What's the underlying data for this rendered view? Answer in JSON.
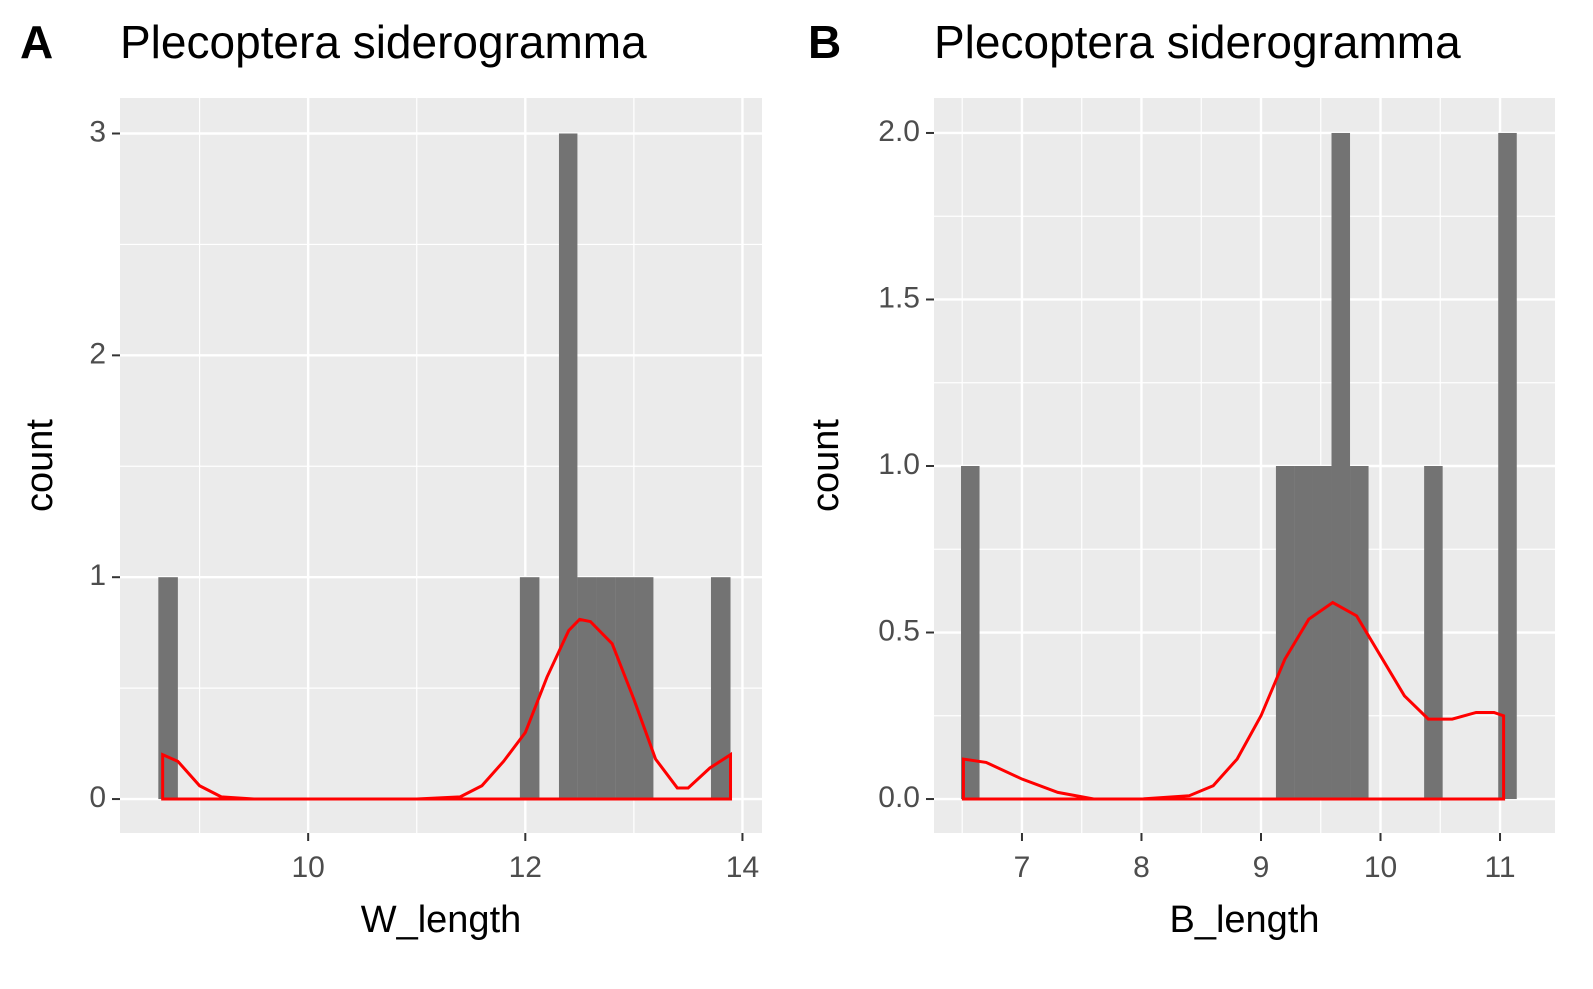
{
  "chart_data": [
    {
      "type": "histogram",
      "tag": "A",
      "title": "Plecoptera siderogramma",
      "x_label": "W_length",
      "y_label": "count",
      "bins": [
        8.62,
        8.8,
        8.97,
        9.15,
        9.32,
        9.5,
        9.67,
        9.85,
        10.02,
        10.2,
        10.38,
        10.55,
        10.73,
        10.9,
        11.08,
        11.25,
        11.43,
        11.6,
        11.78,
        11.95,
        12.13,
        12.31,
        12.48,
        12.66,
        12.83,
        13.01,
        13.18,
        13.36,
        13.53,
        13.71,
        13.89
      ],
      "counts": [
        1,
        0,
        0,
        0,
        0,
        0,
        0,
        0,
        0,
        0,
        0,
        0,
        0,
        0,
        0,
        0,
        0,
        0,
        0,
        1,
        0,
        3,
        1,
        1,
        1,
        1,
        0,
        0,
        0,
        1
      ],
      "color": "#737373",
      "density": {
        "color": "#ff0000",
        "x": [
          8.66,
          8.8,
          9.0,
          9.2,
          9.5,
          10,
          11,
          11.4,
          11.6,
          11.8,
          12.0,
          12.2,
          12.4,
          12.5,
          12.6,
          12.8,
          13.0,
          13.2,
          13.4,
          13.5,
          13.7,
          13.89
        ],
        "y": [
          0.2,
          0.17,
          0.06,
          0.01,
          0,
          0,
          0,
          0.01,
          0.06,
          0.17,
          0.3,
          0.55,
          0.76,
          0.81,
          0.8,
          0.7,
          0.45,
          0.18,
          0.05,
          0.05,
          0.14,
          0.2
        ]
      },
      "xlim": [
        8.267,
        14.18
      ],
      "ylim": [
        -0.153,
        3.16
      ],
      "xticks": [
        10,
        12,
        14
      ],
      "yticks": [
        0,
        1,
        2,
        3
      ],
      "grid": true
    },
    {
      "type": "histogram",
      "tag": "B",
      "title": "Plecoptera siderogramma",
      "x_label": "B_length",
      "y_label": "count",
      "bins": [
        6.49,
        6.645,
        6.8,
        6.955,
        7.11,
        7.265,
        7.42,
        7.575,
        7.73,
        7.885,
        8.04,
        8.195,
        8.35,
        8.505,
        8.66,
        8.815,
        8.97,
        9.125,
        9.28,
        9.435,
        9.59,
        9.745,
        9.9,
        10.055,
        10.21,
        10.365,
        10.52,
        10.675,
        10.83,
        10.985,
        11.14
      ],
      "counts": [
        1,
        0,
        0,
        0,
        0,
        0,
        0,
        0,
        0,
        0,
        0,
        0,
        0,
        0,
        0,
        0,
        0,
        1,
        1,
        1,
        2,
        1,
        0,
        0,
        0,
        1,
        0,
        0,
        0,
        2
      ],
      "color": "#737373",
      "density": {
        "color": "#ff0000",
        "x": [
          6.51,
          6.7,
          7.0,
          7.3,
          7.6,
          8.0,
          8.4,
          8.6,
          8.8,
          9.0,
          9.2,
          9.4,
          9.6,
          9.8,
          10.0,
          10.2,
          10.4,
          10.6,
          10.8,
          10.95,
          11.03
        ],
        "y": [
          0.12,
          0.11,
          0.06,
          0.02,
          0,
          0,
          0.01,
          0.04,
          0.12,
          0.25,
          0.42,
          0.54,
          0.59,
          0.55,
          0.43,
          0.31,
          0.24,
          0.24,
          0.26,
          0.26,
          0.25
        ]
      },
      "xlim": [
        6.264,
        11.46
      ],
      "ylim": [
        -0.102,
        2.105
      ],
      "xticks": [
        7,
        8,
        9,
        10,
        11
      ],
      "yticks": [
        {
          "value": 0,
          "label": "0.0"
        },
        0.5,
        {
          "value": 1,
          "label": "1.0"
        },
        1.5,
        {
          "value": 2,
          "label": "2.0"
        }
      ],
      "grid": true
    }
  ]
}
